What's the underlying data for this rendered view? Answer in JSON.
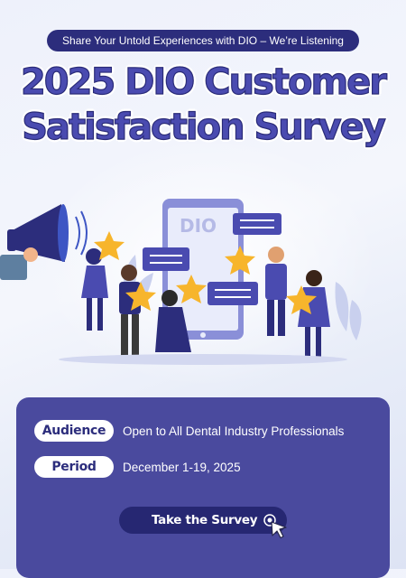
{
  "header": {
    "tagline": "Share Your Untold Experiences with DIO – We’re Listening",
    "title_line1": "2025 DIO Customer",
    "title_line2": "Satisfaction Survey"
  },
  "illustration": {
    "phone_logo": "DIO",
    "icons": [
      "megaphone-icon",
      "star-icon",
      "chat-bubble-icon",
      "smartphone-icon"
    ]
  },
  "details": {
    "audience_label": "Audience",
    "audience_value": "Open to All Dental Industry Professionals",
    "period_label": "Period",
    "period_value": "December 1-19, 2025"
  },
  "cta": {
    "label": "Take the Survey"
  },
  "colors": {
    "navy": "#2c2d7c",
    "panel": "#4a4a9e",
    "title": "#4a4bb0",
    "star": "#f7b52c"
  }
}
